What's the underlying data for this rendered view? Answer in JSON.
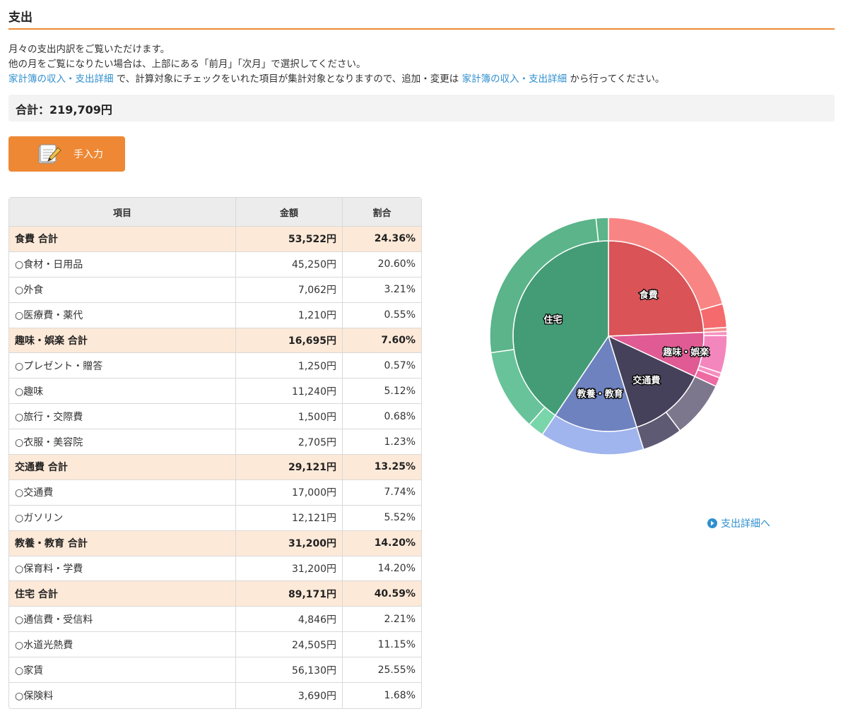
{
  "page": {
    "title": "支出",
    "description": {
      "line1": "月々の支出内訳をご覧いただけます。",
      "line2": "他の月をご覧になりたい場合は、上部にある「前月」「次月」で選択してください。",
      "line3_link1": "家計簿の収入・支出詳細",
      "line3_mid": " で、計算対象にチェックをいれた項目が集計対象となりますので、追加・変更は ",
      "line3_link2": "家計簿の収入・支出詳細",
      "line3_end": " から行ってください。"
    },
    "total_label": "合計：219,709円",
    "manual_button_label": "手入力",
    "detail_link_label": "支出詳細へ"
  },
  "table": {
    "headers": [
      "項目",
      "金額",
      "割合"
    ],
    "rows": [
      {
        "name": "食費 合計",
        "amount": "53,522円",
        "ratio": "24.36%",
        "group": true
      },
      {
        "name": "○食材・日用品",
        "amount": "45,250円",
        "ratio": "20.60%",
        "group": false
      },
      {
        "name": "○外食",
        "amount": "7,062円",
        "ratio": "3.21%",
        "group": false
      },
      {
        "name": "○医療費・薬代",
        "amount": "1,210円",
        "ratio": "0.55%",
        "group": false
      },
      {
        "name": "趣味・娯楽 合計",
        "amount": "16,695円",
        "ratio": "7.60%",
        "group": true
      },
      {
        "name": "○プレゼント・贈答",
        "amount": "1,250円",
        "ratio": "0.57%",
        "group": false
      },
      {
        "name": "○趣味",
        "amount": "11,240円",
        "ratio": "5.12%",
        "group": false
      },
      {
        "name": "○旅行・交際費",
        "amount": "1,500円",
        "ratio": "0.68%",
        "group": false
      },
      {
        "name": "○衣服・美容院",
        "amount": "2,705円",
        "ratio": "1.23%",
        "group": false
      },
      {
        "name": "交通費 合計",
        "amount": "29,121円",
        "ratio": "13.25%",
        "group": true
      },
      {
        "name": "○交通費",
        "amount": "17,000円",
        "ratio": "7.74%",
        "group": false
      },
      {
        "name": "○ガソリン",
        "amount": "12,121円",
        "ratio": "5.52%",
        "group": false
      },
      {
        "name": "教養・教育 合計",
        "amount": "31,200円",
        "ratio": "14.20%",
        "group": true
      },
      {
        "name": "○保育料・学費",
        "amount": "31,200円",
        "ratio": "14.20%",
        "group": false
      },
      {
        "name": "住宅 合計",
        "amount": "89,171円",
        "ratio": "40.59%",
        "group": true
      },
      {
        "name": "○通信費・受信料",
        "amount": "4,846円",
        "ratio": "2.21%",
        "group": false
      },
      {
        "name": "○水道光熱費",
        "amount": "24,505円",
        "ratio": "11.15%",
        "group": false
      },
      {
        "name": "○家賃",
        "amount": "56,130円",
        "ratio": "25.55%",
        "group": false
      },
      {
        "name": "○保険料",
        "amount": "3,690円",
        "ratio": "1.68%",
        "group": false
      }
    ]
  },
  "chart_data": {
    "type": "pie",
    "categories": [
      {
        "name": "食費",
        "value": 53522,
        "color": "#d95357",
        "items": [
          {
            "name": "食材・日用品",
            "value": 45250,
            "color": "#f88583"
          },
          {
            "name": "外食",
            "value": 7062,
            "color": "#f56a6d"
          },
          {
            "name": "医療費・薬代",
            "value": 1210,
            "color": "#f58b8e"
          }
        ]
      },
      {
        "name": "趣味・娯楽",
        "value": 16695,
        "color": "#e05b93",
        "items": [
          {
            "name": "プレゼント・贈答",
            "value": 1250,
            "color": "#f691bf"
          },
          {
            "name": "趣味",
            "value": 11240,
            "color": "#f486be"
          },
          {
            "name": "旅行・交際費",
            "value": 1500,
            "color": "#f58fc0"
          },
          {
            "name": "衣服・美容院",
            "value": 2705,
            "color": "#ee6aa2"
          }
        ]
      },
      {
        "name": "交通費",
        "value": 29121,
        "color": "#46415a",
        "items": [
          {
            "name": "交通費",
            "value": 17000,
            "color": "#7d778e"
          },
          {
            "name": "ガソリン",
            "value": 12121,
            "color": "#5f5a73"
          }
        ]
      },
      {
        "name": "教養・教育",
        "value": 31200,
        "color": "#6e82c0",
        "items": [
          {
            "name": "保育料・学費",
            "value": 31200,
            "color": "#a0b4ee"
          }
        ]
      },
      {
        "name": "住宅",
        "value": 89171,
        "color": "#449c76",
        "items": [
          {
            "name": "通信費・受信料",
            "value": 4846,
            "color": "#79d5aa"
          },
          {
            "name": "水道光熱費",
            "value": 24505,
            "color": "#68c39a"
          },
          {
            "name": "家賃",
            "value": 56130,
            "color": "#5bb48a"
          },
          {
            "name": "保険料",
            "value": 3690,
            "color": "#5bb48a"
          }
        ]
      }
    ]
  }
}
